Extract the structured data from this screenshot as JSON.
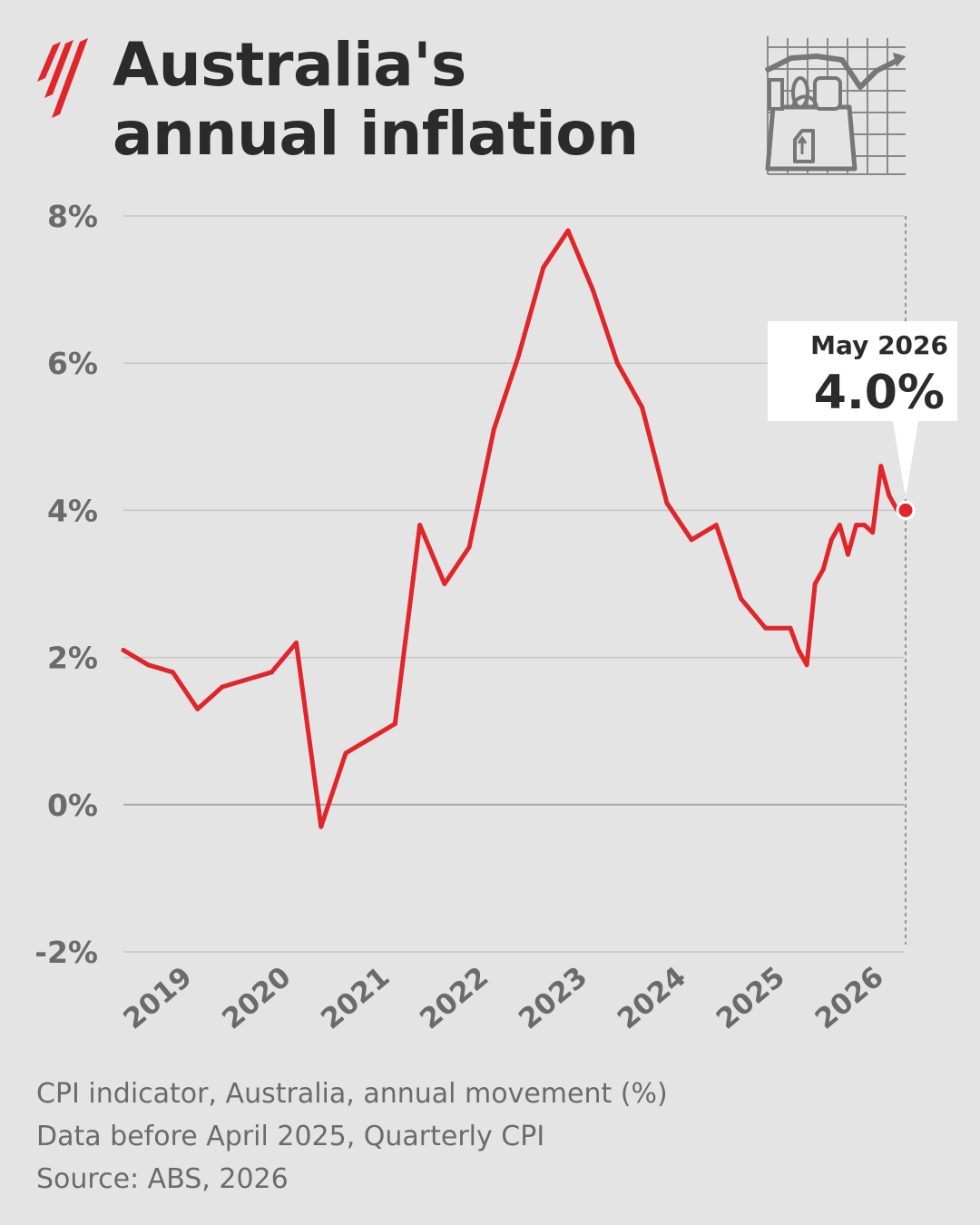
{
  "header": {
    "title_line1": "Australia's",
    "title_line2": "annual inflation",
    "brand_icon": "sbs-logo-icon",
    "illustration_icon": "shopping-bag-chart-icon"
  },
  "footer": {
    "line1": "CPI indicator, Australia, annual movement (%)",
    "line2": "Data before April 2025, Quarterly CPI",
    "line3": "Source: ABS, 2026"
  },
  "colors": {
    "background": "#e4e4e4",
    "line": "#e0262b",
    "text": "#2b2b2b",
    "muted_text": "#6b6b6b",
    "grid": "#c6c6c6"
  },
  "chart_data": {
    "type": "line",
    "title": "Australia's annual inflation",
    "xlabel": "",
    "ylabel": "",
    "ylim": [
      -2,
      8
    ],
    "y_ticks": [
      8,
      6,
      4,
      2,
      0,
      -2
    ],
    "y_tick_labels": [
      "8%",
      "6%",
      "4%",
      "2%",
      "0%",
      "-2%"
    ],
    "xlim": [
      "2018-06",
      "2026-05"
    ],
    "x_tick_labels": [
      "2019",
      "2020",
      "2021",
      "2022",
      "2023",
      "2024",
      "2025",
      "2026"
    ],
    "grid": "horizontal",
    "series": [
      {
        "color": "#e0262b",
        "points": [
          [
            "2018-06",
            2.1
          ],
          [
            "2018-09",
            1.9
          ],
          [
            "2018-12",
            1.8
          ],
          [
            "2019-03",
            1.3
          ],
          [
            "2019-06",
            1.6
          ],
          [
            "2019-09",
            1.7
          ],
          [
            "2019-12",
            1.8
          ],
          [
            "2020-03",
            2.2
          ],
          [
            "2020-06",
            -0.3
          ],
          [
            "2020-09",
            0.7
          ],
          [
            "2020-12",
            0.9
          ],
          [
            "2021-03",
            1.1
          ],
          [
            "2021-06",
            3.8
          ],
          [
            "2021-09",
            3.0
          ],
          [
            "2021-12",
            3.5
          ],
          [
            "2022-03",
            5.1
          ],
          [
            "2022-06",
            6.1
          ],
          [
            "2022-09",
            7.3
          ],
          [
            "2022-12",
            7.8
          ],
          [
            "2023-03",
            7.0
          ],
          [
            "2023-06",
            6.0
          ],
          [
            "2023-09",
            5.4
          ],
          [
            "2023-12",
            4.1
          ],
          [
            "2024-03",
            3.6
          ],
          [
            "2024-06",
            3.8
          ],
          [
            "2024-09",
            2.8
          ],
          [
            "2024-12",
            2.4
          ],
          [
            "2025-03",
            2.4
          ],
          [
            "2025-04",
            2.1
          ],
          [
            "2025-05",
            1.9
          ],
          [
            "2025-06",
            3.0
          ],
          [
            "2025-07",
            3.2
          ],
          [
            "2025-08",
            3.6
          ],
          [
            "2025-09",
            3.8
          ],
          [
            "2025-10",
            3.4
          ],
          [
            "2025-11",
            3.8
          ],
          [
            "2025-12",
            3.8
          ],
          [
            "2026-01",
            3.7
          ],
          [
            "2026-02",
            4.6
          ],
          [
            "2026-03",
            4.2
          ],
          [
            "2026-04",
            4.0
          ],
          [
            "2026-05",
            4.0
          ]
        ]
      }
    ],
    "annotation": {
      "label": "May 2026",
      "value": "4.0%",
      "point": [
        "2026-05",
        4.0
      ]
    }
  }
}
